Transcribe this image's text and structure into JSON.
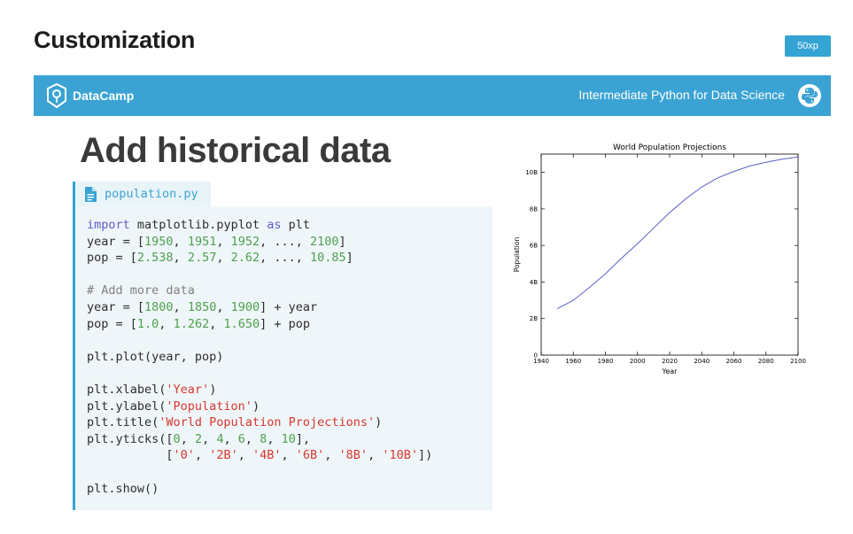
{
  "page": {
    "title": "Customization",
    "xp_badge": "50xp"
  },
  "banner": {
    "brand": "DataCamp",
    "course_title": "Intermediate Python for Data Science",
    "color": "#3aa3d3"
  },
  "slide": {
    "heading": "Add historical data"
  },
  "code_editor": {
    "file_icon": "file-icon",
    "file_name": "population.py",
    "lines": [
      [
        {
          "t": "import",
          "c": "kw"
        },
        {
          "t": " matplotlib.pyplot "
        },
        {
          "t": "as",
          "c": "kw"
        },
        {
          "t": " plt"
        }
      ],
      [
        {
          "t": "year = ["
        },
        {
          "t": "1950",
          "c": "num"
        },
        {
          "t": ", "
        },
        {
          "t": "1951",
          "c": "num"
        },
        {
          "t": ", "
        },
        {
          "t": "1952",
          "c": "num"
        },
        {
          "t": ", ..., "
        },
        {
          "t": "2100",
          "c": "num"
        },
        {
          "t": "]"
        }
      ],
      [
        {
          "t": "pop = ["
        },
        {
          "t": "2.538",
          "c": "num"
        },
        {
          "t": ", "
        },
        {
          "t": "2.57",
          "c": "num"
        },
        {
          "t": ", "
        },
        {
          "t": "2.62",
          "c": "num"
        },
        {
          "t": ", ..., "
        },
        {
          "t": "10.85",
          "c": "num"
        },
        {
          "t": "]"
        }
      ],
      [],
      [
        {
          "t": "# Add more data",
          "c": "cm"
        }
      ],
      [
        {
          "t": "year = ["
        },
        {
          "t": "1800",
          "c": "num"
        },
        {
          "t": ", "
        },
        {
          "t": "1850",
          "c": "num"
        },
        {
          "t": ", "
        },
        {
          "t": "1900",
          "c": "num"
        },
        {
          "t": "] + year"
        }
      ],
      [
        {
          "t": "pop = ["
        },
        {
          "t": "1.0",
          "c": "num"
        },
        {
          "t": ", "
        },
        {
          "t": "1.262",
          "c": "num"
        },
        {
          "t": ", "
        },
        {
          "t": "1.650",
          "c": "num"
        },
        {
          "t": "] + pop"
        }
      ],
      [],
      [
        {
          "t": "plt.plot(year, pop)"
        }
      ],
      [],
      [
        {
          "t": "plt.xlabel("
        },
        {
          "t": "'Year'",
          "c": "str"
        },
        {
          "t": ")"
        }
      ],
      [
        {
          "t": "plt.ylabel("
        },
        {
          "t": "'Population'",
          "c": "str"
        },
        {
          "t": ")"
        }
      ],
      [
        {
          "t": "plt.title("
        },
        {
          "t": "'World Population Projections'",
          "c": "str"
        },
        {
          "t": ")"
        }
      ],
      [
        {
          "t": "plt.yticks(["
        },
        {
          "t": "0",
          "c": "num"
        },
        {
          "t": ", "
        },
        {
          "t": "2",
          "c": "num"
        },
        {
          "t": ", "
        },
        {
          "t": "4",
          "c": "num"
        },
        {
          "t": ", "
        },
        {
          "t": "6",
          "c": "num"
        },
        {
          "t": ", "
        },
        {
          "t": "8",
          "c": "num"
        },
        {
          "t": ", "
        },
        {
          "t": "10",
          "c": "num"
        },
        {
          "t": "],"
        }
      ],
      [
        {
          "t": "           ["
        },
        {
          "t": "'0'",
          "c": "str"
        },
        {
          "t": ", "
        },
        {
          "t": "'2B'",
          "c": "str"
        },
        {
          "t": ", "
        },
        {
          "t": "'4B'",
          "c": "str"
        },
        {
          "t": ", "
        },
        {
          "t": "'6B'",
          "c": "str"
        },
        {
          "t": ", "
        },
        {
          "t": "'8B'",
          "c": "str"
        },
        {
          "t": ", "
        },
        {
          "t": "'10B'",
          "c": "str"
        },
        {
          "t": "])"
        }
      ],
      [],
      [
        {
          "t": "plt.show()"
        }
      ]
    ]
  },
  "chart_data": {
    "type": "line",
    "title": "World Population Projections",
    "xlabel": "Year",
    "ylabel": "Population",
    "xlim": [
      1940,
      2100
    ],
    "ylim": [
      0,
      11
    ],
    "x_ticks": [
      1940,
      1960,
      1980,
      2000,
      2020,
      2040,
      2060,
      2080,
      2100
    ],
    "y_ticks": [
      {
        "value": 0,
        "label": "0"
      },
      {
        "value": 2,
        "label": "2B"
      },
      {
        "value": 4,
        "label": "4B"
      },
      {
        "value": 6,
        "label": "6B"
      },
      {
        "value": 8,
        "label": "8B"
      },
      {
        "value": 10,
        "label": "10B"
      }
    ],
    "grid": false,
    "line_color": "#5b5fc7",
    "series": [
      {
        "x": [
          1950,
          1960,
          1970,
          1980,
          1990,
          2000,
          2010,
          2020,
          2030,
          2040,
          2050,
          2060,
          2070,
          2080,
          2090,
          2100
        ],
        "values": [
          2.54,
          3.0,
          3.7,
          4.45,
          5.3,
          6.1,
          6.95,
          7.8,
          8.55,
          9.2,
          9.7,
          10.05,
          10.35,
          10.55,
          10.72,
          10.85
        ]
      }
    ]
  }
}
